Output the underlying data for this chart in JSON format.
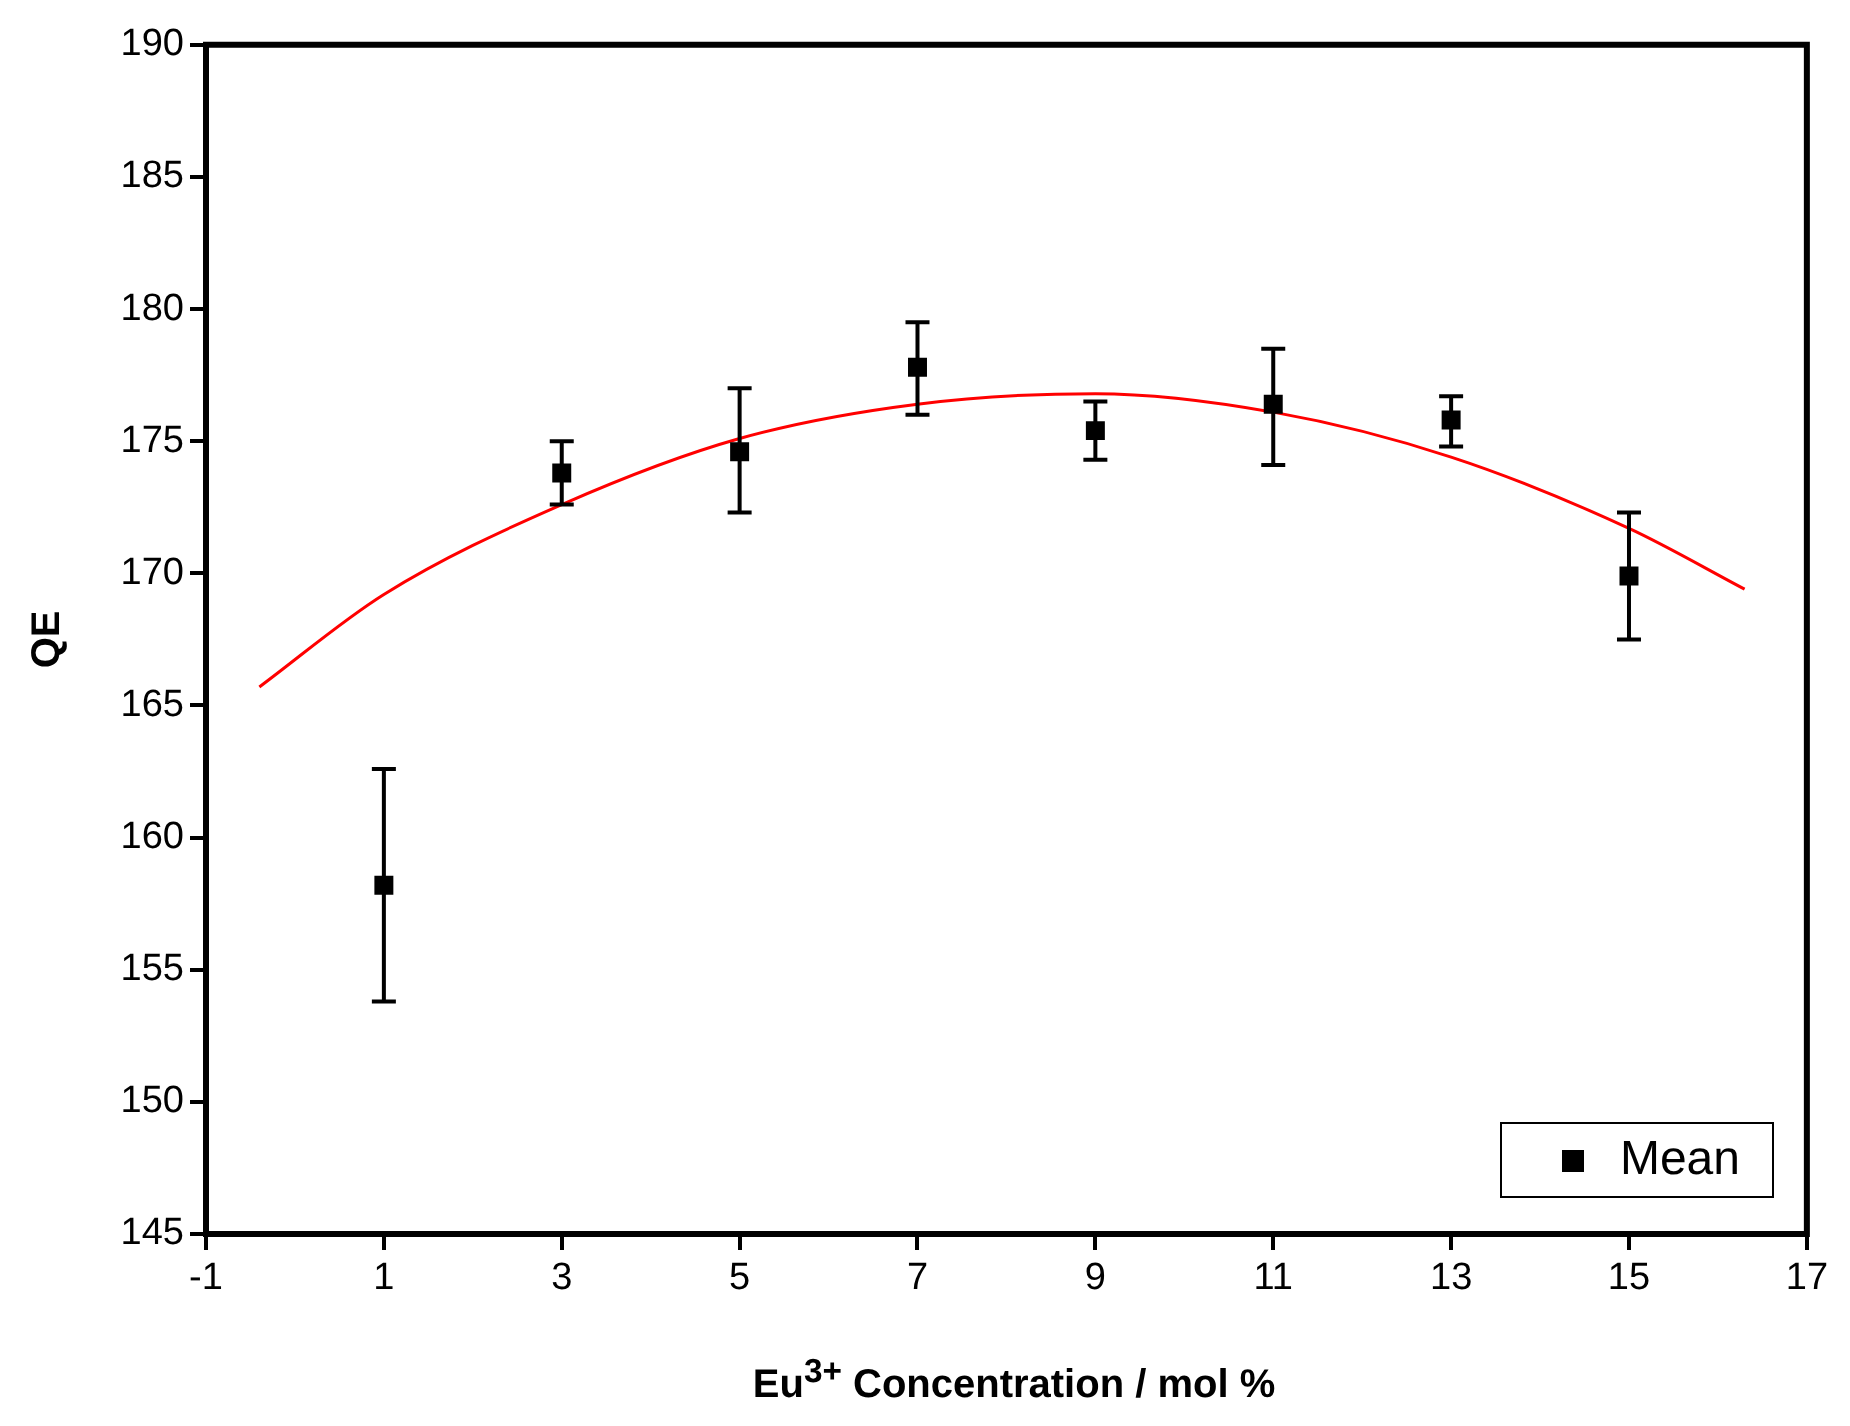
{
  "chart_data": {
    "type": "scatter",
    "xlabel": "Eu$^{3+}$ Concentration / mol %",
    "ylabel": "QE",
    "xlim": [
      -1,
      17
    ],
    "xticks": [
      -1,
      1,
      3,
      5,
      7,
      9,
      11,
      13,
      15,
      17
    ],
    "ylim": [
      145,
      190
    ],
    "yticks": [
      145,
      150,
      155,
      160,
      165,
      170,
      175,
      180,
      185,
      190
    ],
    "grid": false,
    "legend": "bottom right",
    "marker": "square",
    "series": [
      {
        "name": "Mean",
        "color": "#000000",
        "x": [
          1,
          3,
          5,
          7,
          9,
          11,
          13,
          15
        ],
        "values": [
          158.2,
          173.8,
          174.6,
          177.8,
          175.4,
          176.4,
          175.8,
          169.9
        ],
        "errors": [
          [
            153.8,
            162.6
          ],
          [
            172.6,
            175.0
          ],
          [
            172.3,
            177.0
          ],
          [
            176.0,
            179.5
          ],
          [
            174.3,
            176.5
          ],
          [
            174.1,
            178.5
          ],
          [
            174.8,
            176.7
          ],
          [
            167.5,
            172.3
          ]
        ]
      },
      {
        "type": "line",
        "color": "#ff0000",
        "marker": "none",
        "x": [
          -0.4,
          1,
          3,
          5,
          7,
          9,
          11,
          13,
          15,
          16.3
        ],
        "values": [
          165.7,
          169.2,
          172.6,
          175.1,
          176.4,
          176.8,
          176.1,
          174.4,
          171.7,
          169.4
        ]
      }
    ]
  }
}
